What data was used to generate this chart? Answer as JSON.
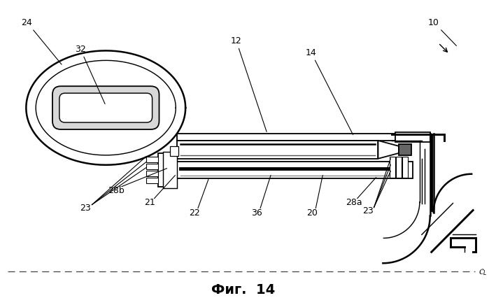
{
  "title": "Фиг.  14",
  "background_color": "#ffffff",
  "fig_width": 6.99,
  "fig_height": 4.27,
  "dpi": 100
}
